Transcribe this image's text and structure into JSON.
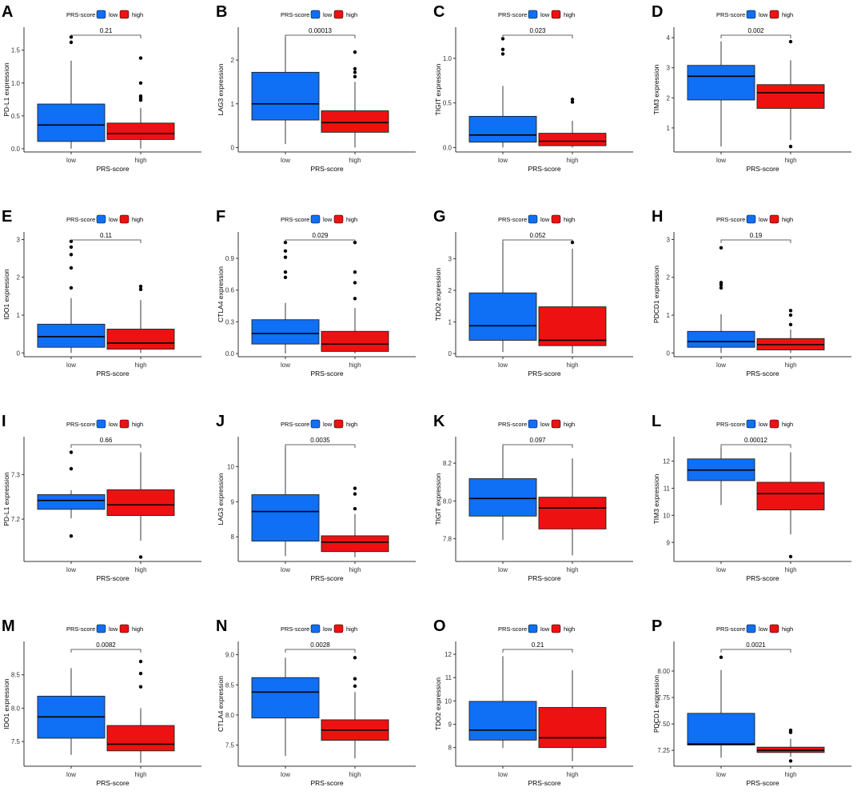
{
  "colors": {
    "low": "#0f6ff5",
    "high": "#ee1111",
    "line": "#000000",
    "axis": "#333333"
  },
  "chart_data": [
    {
      "id": "A",
      "type": "box",
      "ylabel": "PD-L1 expression",
      "xlabel": "PRS-score",
      "legend_title": "PRS-score",
      "legend": [
        "low",
        "high"
      ],
      "categories": [
        "low",
        "high"
      ],
      "pvalue": "0.21",
      "ylim": [
        -0.05,
        1.85
      ],
      "yticks": [
        0.0,
        0.5,
        1.0,
        1.5
      ],
      "ytick_labels": [
        "0.0",
        "0.5",
        "1.0",
        "1.5"
      ],
      "boxes": [
        {
          "q1": 0.11,
          "median": 0.36,
          "q3": 0.68,
          "wlow": 0.0,
          "whigh": 1.34,
          "outliers": [
            1.62,
            1.7
          ]
        },
        {
          "q1": 0.14,
          "median": 0.23,
          "q3": 0.39,
          "wlow": 0.0,
          "whigh": 0.62,
          "outliers": [
            0.74,
            0.77,
            0.8,
            1.0,
            1.38
          ]
        }
      ]
    },
    {
      "id": "B",
      "type": "box",
      "ylabel": "LAG3 expression",
      "xlabel": "PRS-score",
      "legend_title": "PRS-score",
      "legend": [
        "low",
        "high"
      ],
      "categories": [
        "low",
        "high"
      ],
      "pvalue": "0.00013",
      "ylim": [
        -0.1,
        2.75
      ],
      "yticks": [
        0,
        1,
        2
      ],
      "ytick_labels": [
        "0",
        "1",
        "2"
      ],
      "boxes": [
        {
          "q1": 0.63,
          "median": 1.0,
          "q3": 1.72,
          "wlow": 0.08,
          "whigh": 2.52,
          "outliers": []
        },
        {
          "q1": 0.35,
          "median": 0.57,
          "q3": 0.84,
          "wlow": 0.0,
          "whigh": 1.5,
          "outliers": [
            1.62,
            1.72,
            1.8,
            2.18
          ]
        }
      ]
    },
    {
      "id": "C",
      "type": "box",
      "ylabel": "TIGIT expression",
      "xlabel": "PRS-score",
      "legend_title": "PRS-score",
      "legend": [
        "low",
        "high"
      ],
      "categories": [
        "low",
        "high"
      ],
      "pvalue": "0.023",
      "ylim": [
        -0.05,
        1.35
      ],
      "yticks": [
        0.0,
        0.5,
        1.0
      ],
      "ytick_labels": [
        "0.0",
        "0.5",
        "1.0"
      ],
      "boxes": [
        {
          "q1": 0.06,
          "median": 0.14,
          "q3": 0.35,
          "wlow": 0.0,
          "whigh": 0.69,
          "outliers": [
            1.05,
            1.1,
            1.22
          ]
        },
        {
          "q1": 0.02,
          "median": 0.07,
          "q3": 0.16,
          "wlow": 0.0,
          "whigh": 0.3,
          "outliers": [
            0.51,
            0.54
          ]
        }
      ]
    },
    {
      "id": "D",
      "type": "box",
      "ylabel": "TIM3 expression",
      "xlabel": "PRS-score",
      "legend_title": "PRS-score",
      "legend": [
        "low",
        "high"
      ],
      "categories": [
        "low",
        "high"
      ],
      "pvalue": "0.002",
      "ylim": [
        0.2,
        4.35
      ],
      "yticks": [
        1,
        2,
        3,
        4
      ],
      "ytick_labels": [
        "1",
        "2",
        "3",
        "4"
      ],
      "boxes": [
        {
          "q1": 1.93,
          "median": 2.72,
          "q3": 3.08,
          "wlow": 0.38,
          "whigh": 3.88,
          "outliers": []
        },
        {
          "q1": 1.65,
          "median": 2.17,
          "q3": 2.44,
          "wlow": 0.6,
          "whigh": 3.25,
          "outliers": [
            0.38,
            3.87
          ]
        }
      ]
    },
    {
      "id": "E",
      "type": "box",
      "ylabel": "IDO1 expression",
      "xlabel": "PRS-score",
      "legend_title": "PRS-score",
      "legend": [
        "low",
        "high"
      ],
      "categories": [
        "low",
        "high"
      ],
      "pvalue": "0.11",
      "ylim": [
        -0.1,
        3.2
      ],
      "yticks": [
        0,
        1,
        2,
        3
      ],
      "ytick_labels": [
        "0",
        "1",
        "2",
        "3"
      ],
      "boxes": [
        {
          "q1": 0.15,
          "median": 0.43,
          "q3": 0.76,
          "wlow": 0.0,
          "whigh": 1.45,
          "outliers": [
            1.72,
            2.25,
            2.6,
            2.8,
            2.95
          ]
        },
        {
          "q1": 0.1,
          "median": 0.26,
          "q3": 0.63,
          "wlow": 0.0,
          "whigh": 1.4,
          "outliers": [
            1.68,
            1.76
          ]
        }
      ]
    },
    {
      "id": "F",
      "type": "box",
      "ylabel": "CTLA4 expression",
      "xlabel": "PRS-score",
      "legend_title": "PRS-score",
      "legend": [
        "low",
        "high"
      ],
      "categories": [
        "low",
        "high"
      ],
      "pvalue": "0.029",
      "ylim": [
        -0.03,
        1.15
      ],
      "yticks": [
        0.0,
        0.3,
        0.6,
        0.9
      ],
      "ytick_labels": [
        "0.0",
        "0.3",
        "0.6",
        "0.9"
      ],
      "boxes": [
        {
          "q1": 0.09,
          "median": 0.19,
          "q3": 0.32,
          "wlow": 0.0,
          "whigh": 0.48,
          "outliers": [
            0.72,
            0.77,
            0.91,
            0.97,
            1.05
          ]
        },
        {
          "q1": 0.02,
          "median": 0.09,
          "q3": 0.21,
          "wlow": 0.0,
          "whigh": 0.43,
          "outliers": [
            0.52,
            0.67,
            0.77,
            1.05
          ]
        }
      ]
    },
    {
      "id": "G",
      "type": "box",
      "ylabel": "TDO2 expression",
      "xlabel": "PRS-score",
      "legend_title": "PRS-score",
      "legend": [
        "low",
        "high"
      ],
      "categories": [
        "low",
        "high"
      ],
      "pvalue": "0.052",
      "ylim": [
        -0.1,
        3.85
      ],
      "yticks": [
        0,
        1,
        2,
        3
      ],
      "ytick_labels": [
        "0",
        "1",
        "2",
        "3"
      ],
      "boxes": [
        {
          "q1": 0.42,
          "median": 0.88,
          "q3": 1.92,
          "wlow": 0.05,
          "whigh": 3.52,
          "outliers": []
        },
        {
          "q1": 0.25,
          "median": 0.42,
          "q3": 1.48,
          "wlow": 0.0,
          "whigh": 3.32,
          "outliers": [
            3.52
          ]
        }
      ]
    },
    {
      "id": "H",
      "type": "box",
      "ylabel": "PDCD1 expression",
      "xlabel": "PRS-score",
      "legend_title": "PRS-score",
      "legend": [
        "low",
        "high"
      ],
      "categories": [
        "low",
        "high"
      ],
      "pvalue": "0.19",
      "ylim": [
        -0.1,
        3.2
      ],
      "yticks": [
        0,
        1,
        2,
        3
      ],
      "ytick_labels": [
        "0",
        "1",
        "2",
        "3"
      ],
      "boxes": [
        {
          "q1": 0.15,
          "median": 0.3,
          "q3": 0.57,
          "wlow": 0.0,
          "whigh": 1.02,
          "outliers": [
            1.72,
            1.8,
            1.86,
            2.78
          ]
        },
        {
          "q1": 0.08,
          "median": 0.22,
          "q3": 0.38,
          "wlow": 0.0,
          "whigh": 0.62,
          "outliers": [
            0.75,
            1.0,
            1.12
          ]
        }
      ]
    },
    {
      "id": "I",
      "type": "box",
      "ylabel": "PD-L1 expression",
      "xlabel": "PRS-score",
      "legend_title": "PRS-score",
      "legend": [
        "low",
        "high"
      ],
      "categories": [
        "low",
        "high"
      ],
      "pvalue": "0.66",
      "ylim": [
        7.105,
        7.385
      ],
      "yticks": [
        7.2,
        7.3
      ],
      "ytick_labels": [
        "7.2",
        "7.3"
      ],
      "boxes": [
        {
          "q1": 7.222,
          "median": 7.242,
          "q3": 7.255,
          "wlow": 7.202,
          "whigh": 7.265,
          "outliers": [
            7.162,
            7.313,
            7.35
          ]
        },
        {
          "q1": 7.208,
          "median": 7.232,
          "q3": 7.266,
          "wlow": 7.152,
          "whigh": 7.35,
          "outliers": [
            7.115
          ]
        }
      ]
    },
    {
      "id": "J",
      "type": "box",
      "ylabel": "LAG3 expression",
      "xlabel": "PRS-score",
      "legend_title": "PRS-score",
      "legend": [
        "low",
        "high"
      ],
      "categories": [
        "low",
        "high"
      ],
      "pvalue": "0.0035",
      "ylim": [
        7.3,
        10.85
      ],
      "yticks": [
        8,
        9,
        10
      ],
      "ytick_labels": [
        "8",
        "9",
        "10"
      ],
      "boxes": [
        {
          "q1": 7.88,
          "median": 8.72,
          "q3": 9.2,
          "wlow": 7.45,
          "whigh": 10.55,
          "outliers": []
        },
        {
          "q1": 7.58,
          "median": 7.85,
          "q3": 8.03,
          "wlow": 7.42,
          "whigh": 8.65,
          "outliers": [
            8.8,
            9.22,
            9.38
          ]
        }
      ]
    },
    {
      "id": "K",
      "type": "box",
      "ylabel": "TIGIT expression",
      "xlabel": "PRS-score",
      "legend_title": "PRS-score",
      "legend": [
        "low",
        "high"
      ],
      "categories": [
        "low",
        "high"
      ],
      "pvalue": "0.097",
      "ylim": [
        7.68,
        8.34
      ],
      "yticks": [
        7.8,
        8.0,
        8.2
      ],
      "ytick_labels": [
        "7.8",
        "8.0",
        "8.2"
      ],
      "boxes": [
        {
          "q1": 7.92,
          "median": 8.013,
          "q3": 8.118,
          "wlow": 7.793,
          "whigh": 8.292,
          "outliers": []
        },
        {
          "q1": 7.852,
          "median": 7.963,
          "q3": 8.02,
          "wlow": 7.712,
          "whigh": 8.225,
          "outliers": []
        }
      ]
    },
    {
      "id": "L",
      "type": "box",
      "ylabel": "TIM3 expression",
      "xlabel": "PRS-score",
      "legend_title": "PRS-score",
      "legend": [
        "low",
        "high"
      ],
      "categories": [
        "low",
        "high"
      ],
      "pvalue": "0.00012",
      "ylim": [
        8.3,
        12.9
      ],
      "yticks": [
        9,
        10,
        11,
        12
      ],
      "ytick_labels": [
        "9",
        "10",
        "11",
        "12"
      ],
      "boxes": [
        {
          "q1": 11.28,
          "median": 11.67,
          "q3": 12.08,
          "wlow": 10.38,
          "whigh": 12.5,
          "outliers": []
        },
        {
          "q1": 10.2,
          "median": 10.8,
          "q3": 11.22,
          "wlow": 9.3,
          "whigh": 12.32,
          "outliers": [
            8.48
          ]
        }
      ]
    },
    {
      "id": "M",
      "type": "box",
      "ylabel": "IDO1 expression",
      "xlabel": "PRS-score",
      "legend_title": "PRS-score",
      "legend": [
        "low",
        "high"
      ],
      "categories": [
        "low",
        "high"
      ],
      "pvalue": "0.0082",
      "ylim": [
        7.13,
        9.0
      ],
      "yticks": [
        7.5,
        8.0,
        8.5
      ],
      "ytick_labels": [
        "7.5",
        "8.0",
        "8.5"
      ],
      "boxes": [
        {
          "q1": 7.55,
          "median": 7.87,
          "q3": 8.18,
          "wlow": 7.3,
          "whigh": 8.6,
          "outliers": []
        },
        {
          "q1": 7.36,
          "median": 7.46,
          "q3": 7.74,
          "wlow": 7.18,
          "whigh": 8.0,
          "outliers": [
            8.32,
            8.52,
            8.7
          ]
        }
      ]
    },
    {
      "id": "N",
      "type": "box",
      "ylabel": "CTLA4 expression",
      "xlabel": "PRS-score",
      "legend_title": "PRS-score",
      "legend": [
        "low",
        "high"
      ],
      "categories": [
        "low",
        "high"
      ],
      "pvalue": "0.0028",
      "ylim": [
        7.15,
        9.22
      ],
      "yticks": [
        7.5,
        8.0,
        8.5,
        9.0
      ],
      "ytick_labels": [
        "7.5",
        "8.0",
        "8.5",
        "9.0"
      ],
      "boxes": [
        {
          "q1": 7.95,
          "median": 8.38,
          "q3": 8.62,
          "wlow": 7.32,
          "whigh": 8.95,
          "outliers": []
        },
        {
          "q1": 7.58,
          "median": 7.75,
          "q3": 7.92,
          "wlow": 7.28,
          "whigh": 8.38,
          "outliers": [
            8.48,
            8.6,
            8.95
          ]
        }
      ]
    },
    {
      "id": "O",
      "type": "box",
      "ylabel": "TDO2 expression",
      "xlabel": "PRS-score",
      "legend_title": "PRS-score",
      "legend": [
        "low",
        "high"
      ],
      "categories": [
        "low",
        "high"
      ],
      "pvalue": "0.21",
      "ylim": [
        7.2,
        12.55
      ],
      "yticks": [
        8,
        9,
        10,
        11,
        12
      ],
      "ytick_labels": [
        "8",
        "9",
        "10",
        "11",
        "12"
      ],
      "boxes": [
        {
          "q1": 8.32,
          "median": 8.75,
          "q3": 9.98,
          "wlow": 7.98,
          "whigh": 11.92,
          "outliers": []
        },
        {
          "q1": 8.0,
          "median": 8.42,
          "q3": 9.72,
          "wlow": 7.42,
          "whigh": 11.32,
          "outliers": []
        }
      ]
    },
    {
      "id": "P",
      "type": "box",
      "ylabel": "PDCD1 expression",
      "xlabel": "PRS-score",
      "legend_title": "PRS-score",
      "legend": [
        "low",
        "high"
      ],
      "categories": [
        "low",
        "high"
      ],
      "pvalue": "0.0021",
      "ylim": [
        7.1,
        8.28
      ],
      "yticks": [
        7.25,
        7.5,
        7.75,
        8.0
      ],
      "ytick_labels": [
        "7.25",
        "7.50",
        "7.75",
        "8.00"
      ],
      "boxes": [
        {
          "q1": 7.3,
          "median": 7.31,
          "q3": 7.6,
          "wlow": 7.18,
          "whigh": 8.01,
          "outliers": [
            8.13
          ]
        },
        {
          "q1": 7.23,
          "median": 7.25,
          "q3": 7.28,
          "wlow": 7.19,
          "whigh": 7.36,
          "outliers": [
            7.15,
            7.42,
            7.44
          ]
        }
      ]
    }
  ]
}
